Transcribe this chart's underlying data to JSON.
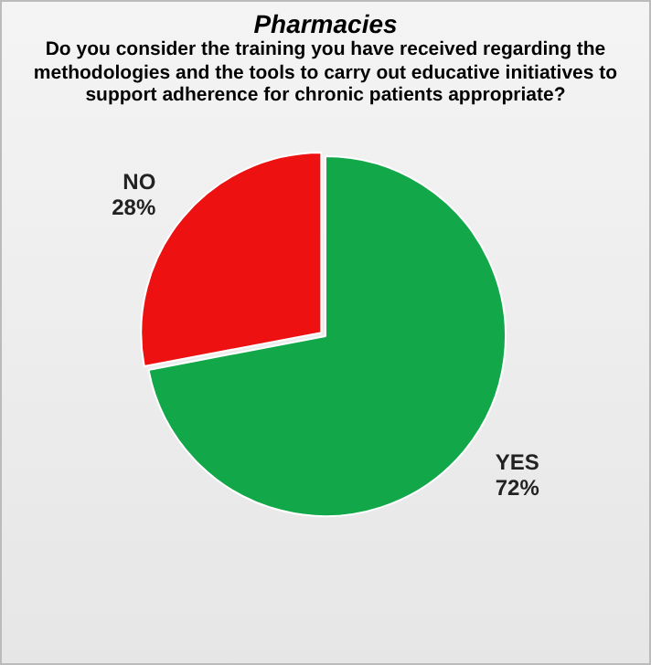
{
  "chart_data": {
    "type": "pie",
    "title": "Pharmacies",
    "subtitle": "Do you consider the training you have received regarding the methodologies and the tools to carry out educative initiatives to support adherence for chronic patients appropriate?",
    "categories": [
      "YES",
      "NO"
    ],
    "values": [
      72,
      28
    ],
    "colors": [
      "#12a84a",
      "#ee1111"
    ],
    "value_labels": [
      "72%",
      "28%"
    ],
    "legend": false
  }
}
